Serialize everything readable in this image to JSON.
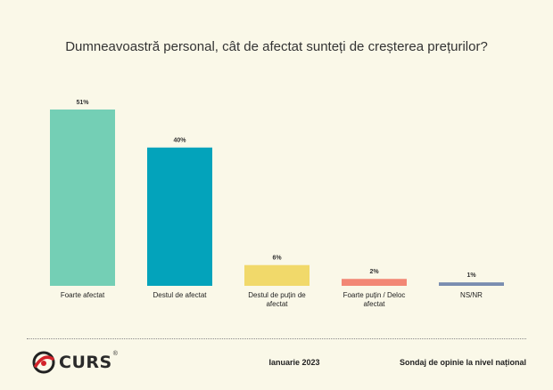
{
  "chart_data": {
    "type": "bar",
    "title": "Dumneavoastră personal, cât de afectat sunteți de creșterea prețurilor?",
    "categories": [
      "Foarte afectat",
      "Destul de afectat",
      "Destul de puțin de afectat",
      "Foarte puțin / Deloc afectat",
      "NS/NR"
    ],
    "values": [
      51,
      40,
      6,
      2,
      1
    ],
    "value_labels": [
      "51%",
      "40%",
      "6%",
      "2%",
      "1%"
    ],
    "colors": [
      "#74cfb5",
      "#03a3bb",
      "#f1d96a",
      "#f28775",
      "#7a8db0"
    ],
    "ylim": [
      0,
      51
    ],
    "grid": false,
    "xlabel": "",
    "ylabel": ""
  },
  "footer": {
    "logo_text": "CURS",
    "logo_registered": "®",
    "date": "Ianuarie 2023",
    "survey": "Sondaj de opinie la nivel național"
  }
}
